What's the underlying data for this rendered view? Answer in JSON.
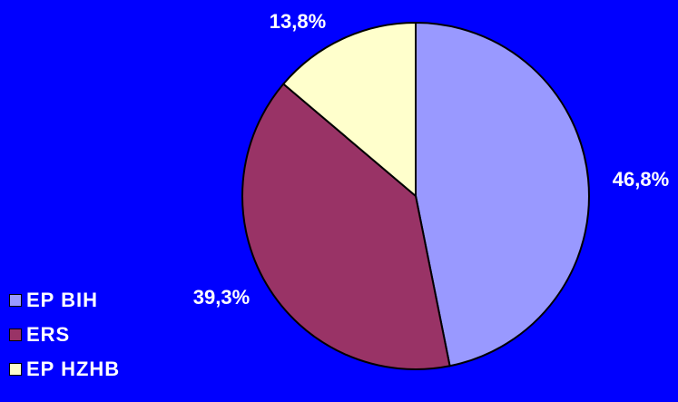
{
  "chart_data": {
    "type": "pie",
    "categories": [
      "EP BIH",
      "ERS",
      "EP HZHB"
    ],
    "values": [
      46.8,
      39.3,
      13.8
    ],
    "data_labels": [
      "46,8%",
      "39,3%",
      "13,8%"
    ],
    "colors": [
      "#9999ff",
      "#993366",
      "#ffffcc"
    ],
    "start_angle": "12 o'clock, clockwise",
    "legend_position": "bottom-left",
    "background": "#0000ff"
  }
}
